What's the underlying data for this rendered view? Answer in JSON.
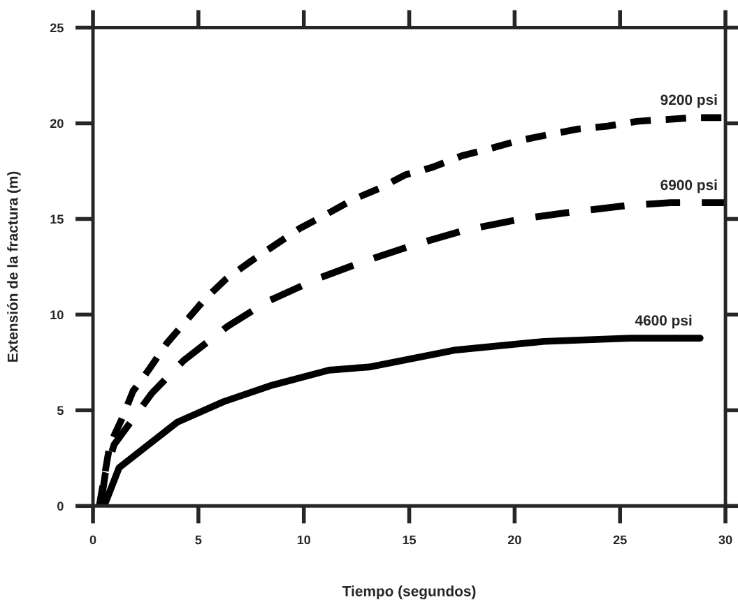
{
  "chart_data": {
    "type": "line",
    "xlabel": "Tiempo (segundos)",
    "ylabel": "Extensión de la fractura (m)",
    "xlim": [
      0,
      30
    ],
    "ylim": [
      0,
      25
    ],
    "xticks": [
      0,
      5,
      10,
      15,
      20,
      25,
      30
    ],
    "yticks": [
      0,
      5,
      10,
      15,
      20,
      25
    ],
    "grid": false,
    "legend": false,
    "series": [
      {
        "name": "9200 psi",
        "color": "#000000",
        "line_style": "dashed",
        "x": [
          0.3,
          0.8,
          1.35,
          1.9,
          2.7,
          3.5,
          4.4,
          5.3,
          6.3,
          7.5,
          9.8,
          11.0,
          12.3,
          13.6,
          14.8,
          16.1,
          17.5,
          18.8,
          20.2,
          21.6,
          23.0,
          24.4,
          25.8,
          27.2,
          28.6,
          30.0
        ],
        "values": [
          0,
          3.2,
          4.5,
          6.0,
          7.2,
          8.5,
          9.65,
          10.8,
          11.85,
          12.8,
          14.5,
          15.2,
          16.0,
          16.6,
          17.3,
          17.7,
          18.3,
          18.67,
          19.1,
          19.4,
          19.7,
          19.85,
          20.1,
          20.2,
          20.3,
          20.3
        ]
      },
      {
        "name": "6900 psi",
        "color": "#000000",
        "line_style": "dashed",
        "x": [
          0.36,
          0.58,
          1.0,
          2.8,
          4.3,
          6.4,
          8.3,
          10.7,
          12.9,
          15.4,
          17.6,
          20.3,
          22.5,
          25.3,
          27.4,
          30.0
        ],
        "values": [
          0,
          1.66,
          3.2,
          5.9,
          7.6,
          9.4,
          10.7,
          11.9,
          12.8,
          13.7,
          14.4,
          15.0,
          15.33,
          15.7,
          15.85,
          15.85
        ]
      },
      {
        "name": "4600 psi",
        "color": "#000000",
        "line_style": "solid",
        "x": [
          0.53,
          1.24,
          2.35,
          4.0,
          6.2,
          8.4,
          11.2,
          13.1,
          17.2,
          21.4,
          25.5,
          28.8
        ],
        "values": [
          0,
          2.0,
          2.96,
          4.38,
          5.45,
          6.28,
          7.1,
          7.26,
          8.15,
          8.6,
          8.77,
          8.77
        ]
      }
    ]
  }
}
